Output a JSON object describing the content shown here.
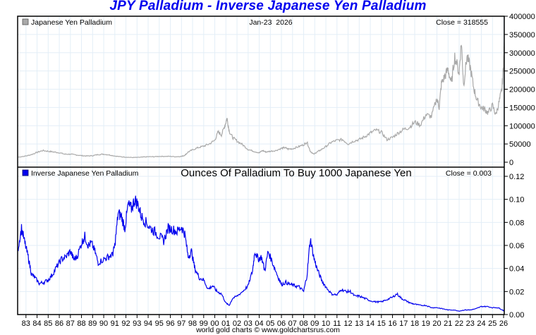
{
  "title": "JPY Palladium - Inverse Japanese Yen Palladium",
  "footer": "world gold charts © www.goldchartsrus.com",
  "chart_data": [
    {
      "type": "line",
      "panel": "top",
      "legend": "Japanese Yen Palladium",
      "legend_color": "#a9a9a9",
      "line_color": "#a9a9a9",
      "date_label": "Jan-23  2026",
      "close_label": "Close = 318555",
      "ylim": [
        0,
        400000
      ],
      "yticks": [
        0,
        50000,
        100000,
        150000,
        200000,
        250000,
        300000,
        350000,
        400000
      ],
      "ytick_labels": [
        "0",
        "50000",
        "100000",
        "150000",
        "200000",
        "250000",
        "300000",
        "350000",
        "400000"
      ],
      "grid": true,
      "x": [
        1982.3,
        1983.0,
        1983.5,
        1984.0,
        1984.5,
        1985.0,
        1985.5,
        1986.0,
        1986.5,
        1987.0,
        1987.5,
        1988.0,
        1988.5,
        1989.0,
        1989.5,
        1990.0,
        1990.5,
        1991.0,
        1991.5,
        1992.0,
        1992.5,
        1993.0,
        1993.5,
        1994.0,
        1994.5,
        1995.0,
        1995.5,
        1996.0,
        1996.5,
        1997.0,
        1997.3,
        1997.6,
        1998.0,
        1998.5,
        1999.0,
        1999.5,
        2000.0,
        2000.3,
        2000.6,
        2000.9,
        2001.1,
        2001.3,
        2001.6,
        2002.0,
        2002.5,
        2003.0,
        2003.5,
        2004.0,
        2004.3,
        2004.6,
        2005.0,
        2005.5,
        2006.0,
        2006.3,
        2006.6,
        2007.0,
        2007.5,
        2008.0,
        2008.3,
        2008.6,
        2008.9,
        2009.2,
        2009.5,
        2010.0,
        2010.5,
        2011.0,
        2011.5,
        2012.0,
        2012.5,
        2013.0,
        2013.5,
        2014.0,
        2014.5,
        2015.0,
        2015.5,
        2016.0,
        2016.5,
        2017.0,
        2017.5,
        2018.0,
        2018.5,
        2019.0,
        2019.5,
        2020.0,
        2020.2,
        2020.4,
        2020.7,
        2021.0,
        2021.3,
        2021.6,
        2022.0,
        2022.2,
        2022.4,
        2022.7,
        2023.0,
        2023.3,
        2023.6,
        2024.0,
        2024.3,
        2024.6,
        2025.0,
        2025.3,
        2025.6,
        2025.85,
        2026.0,
        2026.06
      ],
      "y": [
        14000,
        17000,
        21000,
        27000,
        32000,
        30000,
        28000,
        26000,
        22000,
        22000,
        20000,
        18000,
        17000,
        18000,
        21000,
        22000,
        20000,
        17000,
        15000,
        14000,
        13000,
        13000,
        14000,
        15000,
        15000,
        16000,
        16000,
        16000,
        15000,
        16000,
        19000,
        28000,
        34000,
        40000,
        44000,
        50000,
        60000,
        83000,
        75000,
        100000,
        120000,
        85000,
        68000,
        58000,
        48000,
        35000,
        30000,
        26000,
        32000,
        28000,
        30000,
        32000,
        38000,
        40000,
        36000,
        37000,
        42000,
        48000,
        55000,
        30000,
        22000,
        28000,
        33000,
        43000,
        55000,
        60000,
        62000,
        50000,
        58000,
        62000,
        70000,
        80000,
        88000,
        82000,
        62000,
        68000,
        80000,
        90000,
        95000,
        110000,
        102000,
        130000,
        125000,
        175000,
        150000,
        215000,
        235000,
        255000,
        215000,
        290000,
        245000,
        330000,
        210000,
        290000,
        260000,
        205000,
        170000,
        150000,
        145000,
        135000,
        155000,
        130000,
        165000,
        200000,
        270000,
        318555
      ]
    },
    {
      "type": "line",
      "panel": "bottom",
      "legend": "Inverse Japanese Yen Palladium",
      "legend_color": "#0000ee",
      "line_color": "#0000ee",
      "subtitle": "Ounces Of Palladium To Buy 1000 Japanese Yen",
      "close_label": "Close = 0.003",
      "ylim": [
        0,
        0.125
      ],
      "yticks": [
        0.0,
        0.02,
        0.04,
        0.06,
        0.08,
        0.1,
        0.12
      ],
      "ytick_labels": [
        "0.00",
        "0.02",
        "0.04",
        "0.06",
        "0.08",
        "0.10",
        "0.12"
      ],
      "top_overlap_label": "0",
      "xtick_labels": [
        "83",
        "84",
        "85",
        "86",
        "87",
        "88",
        "89",
        "90",
        "91",
        "92",
        "93",
        "94",
        "95",
        "96",
        "97",
        "98",
        "99",
        "00",
        "01",
        "02",
        "03",
        "04",
        "05",
        "06",
        "07",
        "08",
        "09",
        "10",
        "11",
        "12",
        "13",
        "14",
        "15",
        "16",
        "17",
        "18",
        "19",
        "20",
        "21",
        "22",
        "23",
        "24",
        "25",
        "26"
      ],
      "xtick_years": [
        1983,
        1984,
        1985,
        1986,
        1987,
        1988,
        1989,
        1990,
        1991,
        1992,
        1993,
        1994,
        1995,
        1996,
        1997,
        1998,
        1999,
        2000,
        2001,
        2002,
        2003,
        2004,
        2005,
        2006,
        2007,
        2008,
        2009,
        2010,
        2011,
        2012,
        2013,
        2014,
        2015,
        2016,
        2017,
        2018,
        2019,
        2020,
        2021,
        2022,
        2023,
        2024,
        2025,
        2026
      ],
      "grid": true,
      "x": [
        1982.3,
        1982.6,
        1982.9,
        1983.2,
        1983.5,
        1983.8,
        1984.2,
        1984.6,
        1985.0,
        1985.4,
        1985.8,
        1986.2,
        1986.6,
        1987.0,
        1987.3,
        1987.6,
        1988.0,
        1988.3,
        1988.6,
        1988.9,
        1989.2,
        1989.5,
        1990.0,
        1990.4,
        1990.8,
        1991.0,
        1991.3,
        1991.6,
        1991.9,
        1992.2,
        1992.5,
        1992.8,
        1993.1,
        1993.4,
        1993.8,
        1994.2,
        1994.6,
        1995.0,
        1995.4,
        1995.8,
        1996.2,
        1996.6,
        1997.0,
        1997.3,
        1997.6,
        1997.9,
        1998.2,
        1998.6,
        1999.0,
        1999.4,
        1999.8,
        2000.2,
        2000.6,
        2001.0,
        2001.3,
        2001.6,
        2002.0,
        2002.5,
        2003.0,
        2003.4,
        2003.6,
        2003.9,
        2004.2,
        2004.5,
        2004.8,
        2005.2,
        2005.6,
        2006.0,
        2006.4,
        2006.8,
        2007.2,
        2007.6,
        2008.0,
        2008.3,
        2008.6,
        2008.9,
        2009.2,
        2009.6,
        2010.0,
        2010.5,
        2011.0,
        2011.4,
        2011.8,
        2012.2,
        2012.6,
        2013.0,
        2013.5,
        2014.0,
        2014.5,
        2015.0,
        2015.5,
        2016.0,
        2016.4,
        2016.8,
        2017.2,
        2017.6,
        2018.0,
        2018.5,
        2019.0,
        2019.5,
        2020.0,
        2020.5,
        2021.0,
        2021.5,
        2022.0,
        2022.5,
        2023.0,
        2023.5,
        2024.0,
        2024.5,
        2025.0,
        2025.5,
        2025.9,
        2026.06
      ],
      "y": [
        0.058,
        0.075,
        0.062,
        0.05,
        0.035,
        0.032,
        0.027,
        0.028,
        0.03,
        0.035,
        0.042,
        0.048,
        0.05,
        0.055,
        0.048,
        0.05,
        0.062,
        0.068,
        0.06,
        0.062,
        0.055,
        0.045,
        0.048,
        0.05,
        0.052,
        0.06,
        0.088,
        0.085,
        0.075,
        0.095,
        0.092,
        0.1,
        0.095,
        0.085,
        0.08,
        0.075,
        0.072,
        0.068,
        0.064,
        0.075,
        0.074,
        0.072,
        0.076,
        0.07,
        0.05,
        0.055,
        0.04,
        0.032,
        0.03,
        0.022,
        0.025,
        0.02,
        0.018,
        0.01,
        0.008,
        0.014,
        0.016,
        0.02,
        0.025,
        0.038,
        0.055,
        0.048,
        0.05,
        0.038,
        0.055,
        0.045,
        0.035,
        0.026,
        0.028,
        0.026,
        0.025,
        0.024,
        0.02,
        0.034,
        0.066,
        0.05,
        0.04,
        0.03,
        0.024,
        0.018,
        0.017,
        0.022,
        0.02,
        0.02,
        0.016,
        0.016,
        0.014,
        0.012,
        0.011,
        0.011,
        0.013,
        0.015,
        0.018,
        0.014,
        0.012,
        0.01,
        0.009,
        0.008,
        0.008,
        0.006,
        0.006,
        0.005,
        0.004,
        0.004,
        0.003,
        0.004,
        0.004,
        0.005,
        0.007,
        0.007,
        0.006,
        0.006,
        0.004,
        0.003
      ]
    }
  ]
}
